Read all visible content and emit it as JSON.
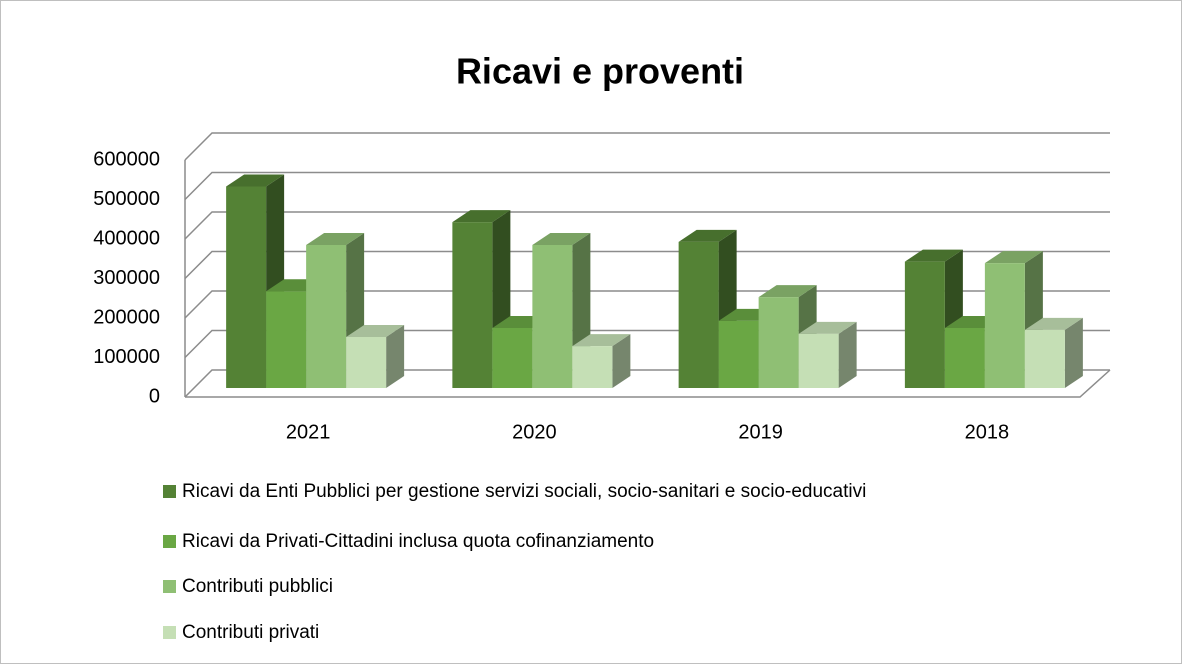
{
  "chart_data": {
    "type": "bar3d",
    "title": "Ricavi e proventi",
    "categories": [
      "2021",
      "2020",
      "2019",
      "2018"
    ],
    "series": [
      {
        "name": "Ricavi da Enti Pubblici per gestione servizi sociali, socio-sanitari e socio-educativi",
        "color": "#548235",
        "values": [
          510000,
          420000,
          370000,
          320000
        ]
      },
      {
        "name": "Ricavi da Privati-Cittadini inclusa quota cofinanziamento",
        "color": "#6aa744",
        "values": [
          245000,
          152000,
          170000,
          152000
        ]
      },
      {
        "name": "Contributi pubblici",
        "color": "#8fbf74",
        "values": [
          362000,
          362000,
          230000,
          316000
        ]
      },
      {
        "name": "Contributi privati",
        "color": "#c5dfb5",
        "values": [
          129000,
          106000,
          137000,
          147000
        ]
      }
    ],
    "ylim": [
      0,
      600000
    ],
    "yticks": [
      0,
      100000,
      200000,
      300000,
      400000,
      500000,
      600000
    ],
    "grid": true,
    "legend": "bottom"
  }
}
